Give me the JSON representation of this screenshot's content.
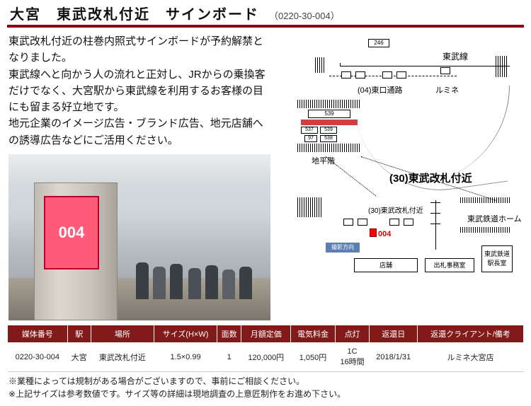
{
  "header": {
    "title": "大宮　東武改札付近　サインボード",
    "code": "（0220-30-004）"
  },
  "description": "東武改札付近の柱巻内照式サインボードが予約解禁となりました。\n東武線へと向かう人の流れと正対し、JRからの乗換客だけでなく、大宮駅から東武線を利用するお客様の目にも留まる好立地です。\n地元企業のイメージ広告・ブランド広告、地元店舗への誘導広告などにご活用ください。",
  "photo": {
    "sign_number": "004"
  },
  "map": {
    "labels": {
      "tobu_line": "東武線",
      "passage": "(04)東口通路",
      "lumine": "ルミネ",
      "ground": "地平階",
      "section_title": "(30)東武改札付近",
      "section_small": "(30)東武改札付近",
      "platform": "東武鉄道ホーム",
      "office": "東武鉄道\n駅長室",
      "shop": "店舗",
      "ticket": "出札事務室",
      "direction": "撮影方向",
      "num": "004",
      "n246": "246",
      "n539a": "539",
      "n537": "537",
      "n539b": "539",
      "n97": "97",
      "n538": "538"
    }
  },
  "table": {
    "headers": [
      "媒体番号",
      "駅",
      "場所",
      "サイズ(H×W)",
      "面数",
      "月額定価",
      "電気料金",
      "点灯",
      "返還日",
      "返還クライアント/備考"
    ],
    "row": [
      "0220-30-004",
      "大宮",
      "東武改札付近",
      "1.5×0.99",
      "1",
      "120,000円",
      "1,050円",
      "1C\n16時間",
      "2018/1/31",
      "ルミネ大宮店"
    ]
  },
  "notes": [
    "※業種によっては規制がある場合がございますので、事前にご相談ください。",
    "※上記サイズは参考数値です。サイズ等の詳細は現地調査の上意匠制作をお進め下さい。"
  ]
}
